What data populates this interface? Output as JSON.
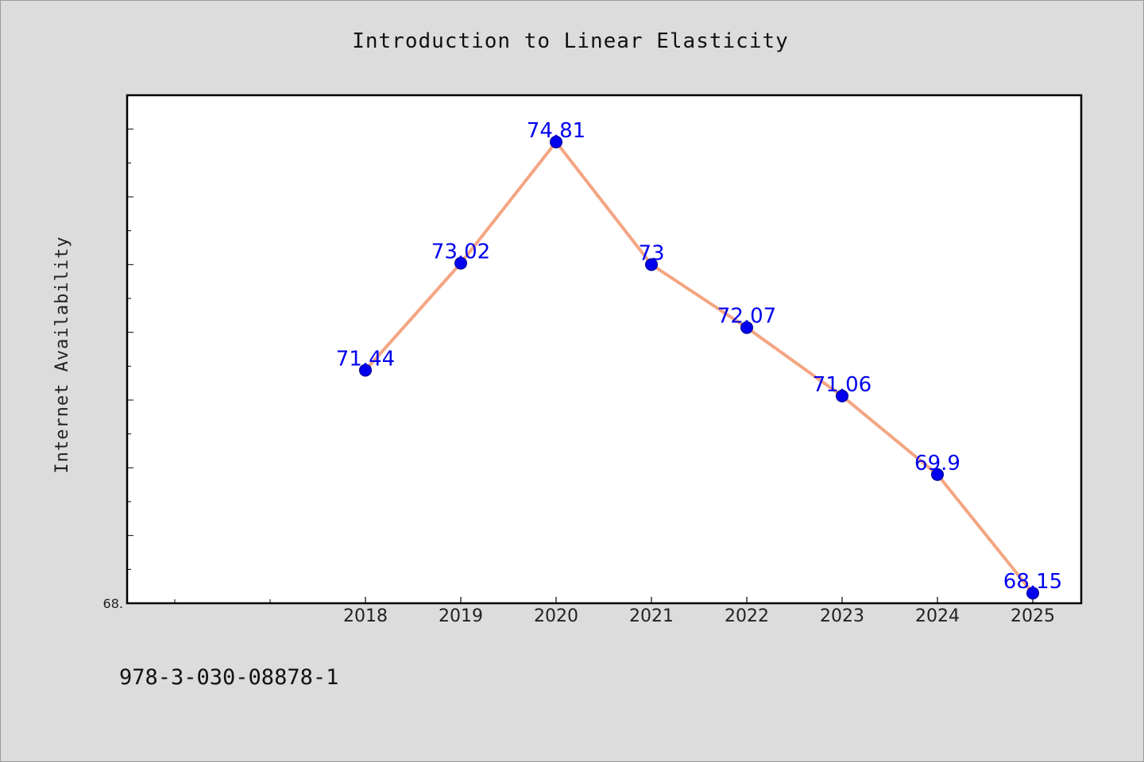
{
  "chart_data": {
    "type": "line",
    "title": "Introduction to Linear Elasticity",
    "xlabel": "",
    "ylabel": "Internet Availability",
    "categories": [
      "2018",
      "2019",
      "2020",
      "2021",
      "2022",
      "2023",
      "2024",
      "2025"
    ],
    "series": [
      {
        "values": [
          71.44,
          73.02,
          74.81,
          73,
          72.07,
          71.06,
          69.9,
          68.15
        ],
        "line_color": "#f4a582",
        "marker_color": "#0000ee"
      }
    ],
    "data_labels": [
      "71.44",
      "73.02",
      "74.81",
      "73",
      "72.07",
      "71.06",
      "69.9",
      "68.15"
    ],
    "y_tick_label": "68.",
    "ylim": [
      68.0,
      75.5
    ],
    "grid": false,
    "legend": "none"
  },
  "footer": {
    "text": "978-3-030-08878-1"
  }
}
